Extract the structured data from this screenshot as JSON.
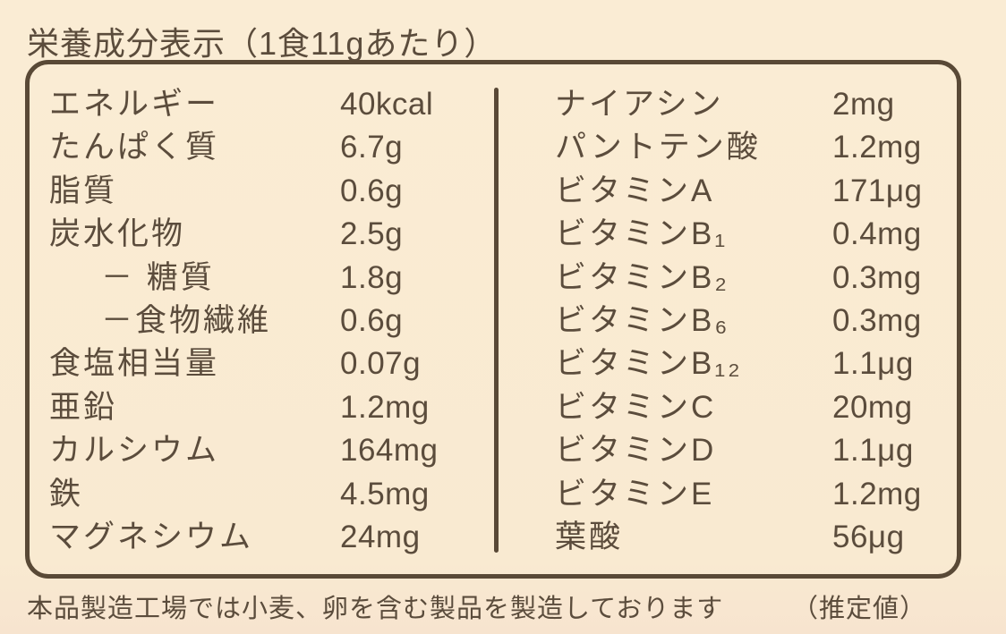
{
  "title": "栄養成分表示（1食11gあたり）",
  "table": {
    "left_rows": [
      {
        "label": "エネルギー",
        "value": "40kcal"
      },
      {
        "label": "たんぱく質",
        "value": "6.7g"
      },
      {
        "label": "脂質",
        "value": "0.6g"
      },
      {
        "label": "炭水化物",
        "value": "2.5g"
      },
      {
        "label": "－ 糖質",
        "value": "1.8g",
        "indent": true
      },
      {
        "label": "－食物繊維",
        "value": "0.6g",
        "indent": true
      },
      {
        "label": "食塩相当量",
        "value": "0.07g"
      },
      {
        "label": "亜鉛",
        "value": "1.2mg"
      },
      {
        "label": "カルシウム",
        "value": "164mg"
      },
      {
        "label": "鉄",
        "value": "4.5mg"
      },
      {
        "label": "マグネシウム",
        "value": "24mg"
      }
    ],
    "right_rows": [
      {
        "label": "ナイアシン",
        "value": "2mg"
      },
      {
        "label": "パントテン酸",
        "value": "1.2mg"
      },
      {
        "label": "ビタミンA",
        "value": "171μg"
      },
      {
        "label": "ビタミンB₁",
        "value": "0.4mg"
      },
      {
        "label": "ビタミンB₂",
        "value": "0.3mg"
      },
      {
        "label": "ビタミンB₆",
        "value": "0.3mg"
      },
      {
        "label": "ビタミンB₁₂",
        "value": "1.1μg"
      },
      {
        "label": "ビタミンC",
        "value": "20mg"
      },
      {
        "label": "ビタミンD",
        "value": "1.1μg"
      },
      {
        "label": "ビタミンE",
        "value": "1.2mg"
      },
      {
        "label": "葉酸",
        "value": "56μg"
      }
    ]
  },
  "footer": {
    "allergy_note": "本品製造工場では小麦、卵を含む製品を製造しております",
    "estimate_note": "（推定値）"
  },
  "colors": {
    "background": "#faecd4",
    "text": "#5b4c3c",
    "border": "#594936"
  }
}
